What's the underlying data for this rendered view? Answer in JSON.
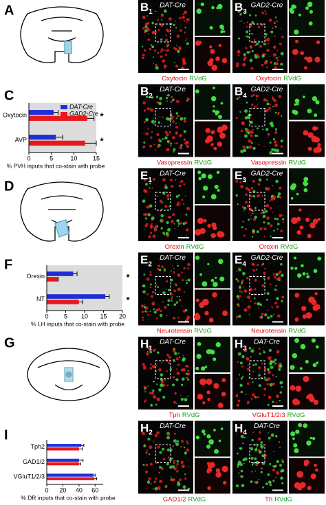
{
  "panel_labels": [
    "A",
    "C",
    "D",
    "F",
    "G",
    "I"
  ],
  "chart_data": [
    {
      "type": "bar",
      "orientation": "horizontal",
      "categories": [
        "Oxytocin",
        "AVP"
      ],
      "series": [
        {
          "name": "DAT-Cre",
          "color": "#1f2fd6",
          "values": [
            5.5,
            6
          ],
          "errors": [
            1,
            1.5
          ]
        },
        {
          "name": "GAD2-Cre",
          "color": "#e8191c",
          "values": [
            13,
            12.5
          ],
          "errors": [
            1.5,
            2.5
          ]
        }
      ],
      "xlim": [
        0,
        15
      ],
      "xticks": [
        0,
        5,
        10,
        15
      ],
      "xlabel": "% PVH inputs that co-stain with probe",
      "significance": [
        "*",
        "*"
      ],
      "background": "#dcdcdc",
      "legend": "top-right"
    },
    {
      "type": "bar",
      "orientation": "horizontal",
      "categories": [
        "Orexin",
        "NT"
      ],
      "series": [
        {
          "color": "#1f2fd6",
          "values": [
            7,
            15.5
          ],
          "errors": [
            1,
            1
          ]
        },
        {
          "color": "#e8191c",
          "values": [
            3,
            8.5
          ],
          "errors": [
            0,
            1
          ]
        }
      ],
      "xlim": [
        0,
        20
      ],
      "xticks": [
        0,
        5,
        10,
        15,
        20
      ],
      "xlabel": "% LH inputs that co-stain with probe",
      "significance": [
        "*",
        "*"
      ],
      "background": "#dcdcdc"
    },
    {
      "type": "bar",
      "orientation": "horizontal",
      "categories": [
        "Tph2",
        "GAD1/2",
        "VGluT1/2/3"
      ],
      "series": [
        {
          "color": "#1f2fd6",
          "values": [
            43,
            40,
            58
          ],
          "errors": [
            3,
            5,
            2
          ]
        },
        {
          "color": "#e8191c",
          "values": [
            40,
            40,
            59
          ],
          "errors": [
            4,
            2,
            3
          ]
        }
      ],
      "xlim": [
        0,
        70
      ],
      "xticks": [
        0,
        20,
        40,
        60
      ],
      "xlabel": "% DR inputs that co-stain with probe",
      "background": "#ffffff"
    }
  ],
  "image_panels": [
    {
      "letter": "B",
      "sub": "1",
      "genotype": "DAT-Cre",
      "probe": "Oxytocin",
      "virus": "RVdG"
    },
    {
      "letter": "B",
      "sub": "3",
      "genotype": "GAD2-Cre",
      "probe": "Oxytocin",
      "virus": "RVdG"
    },
    {
      "letter": "B",
      "sub": "2",
      "genotype": "DAT-Cre",
      "probe": "Vasopressin",
      "virus": "RVdG"
    },
    {
      "letter": "B",
      "sub": "4",
      "genotype": "GAD2-Cre",
      "probe": "Vasopressin",
      "virus": "RVdG"
    },
    {
      "letter": "E",
      "sub": "1",
      "genotype": "DAT-Cre",
      "probe": "Orexin",
      "virus": "RVdG"
    },
    {
      "letter": "E",
      "sub": "3",
      "genotype": "GAD2-Cre",
      "probe": "Orexin",
      "virus": "RVdG"
    },
    {
      "letter": "E",
      "sub": "2",
      "genotype": "DAT-Cre",
      "probe": "Neurotensin",
      "virus": "RVdG"
    },
    {
      "letter": "E",
      "sub": "4",
      "genotype": "GAD2-Cre",
      "probe": "Neurotensin",
      "virus": "RVdG"
    },
    {
      "letter": "H",
      "sub": "1",
      "genotype": "DAT-Cre",
      "probe": "Tph",
      "virus": "RVdG"
    },
    {
      "letter": "H",
      "sub": "3",
      "genotype": "DAT-Cre",
      "probe": "VGluT1/2/3",
      "virus": "RVdG"
    },
    {
      "letter": "H",
      "sub": "2",
      "genotype": "DAT-Cre",
      "probe": "GAD1/2",
      "virus": "RVdG"
    },
    {
      "letter": "H",
      "sub": "4",
      "genotype": "DAT-Cre",
      "probe": "Th",
      "virus": "RVdG"
    }
  ]
}
